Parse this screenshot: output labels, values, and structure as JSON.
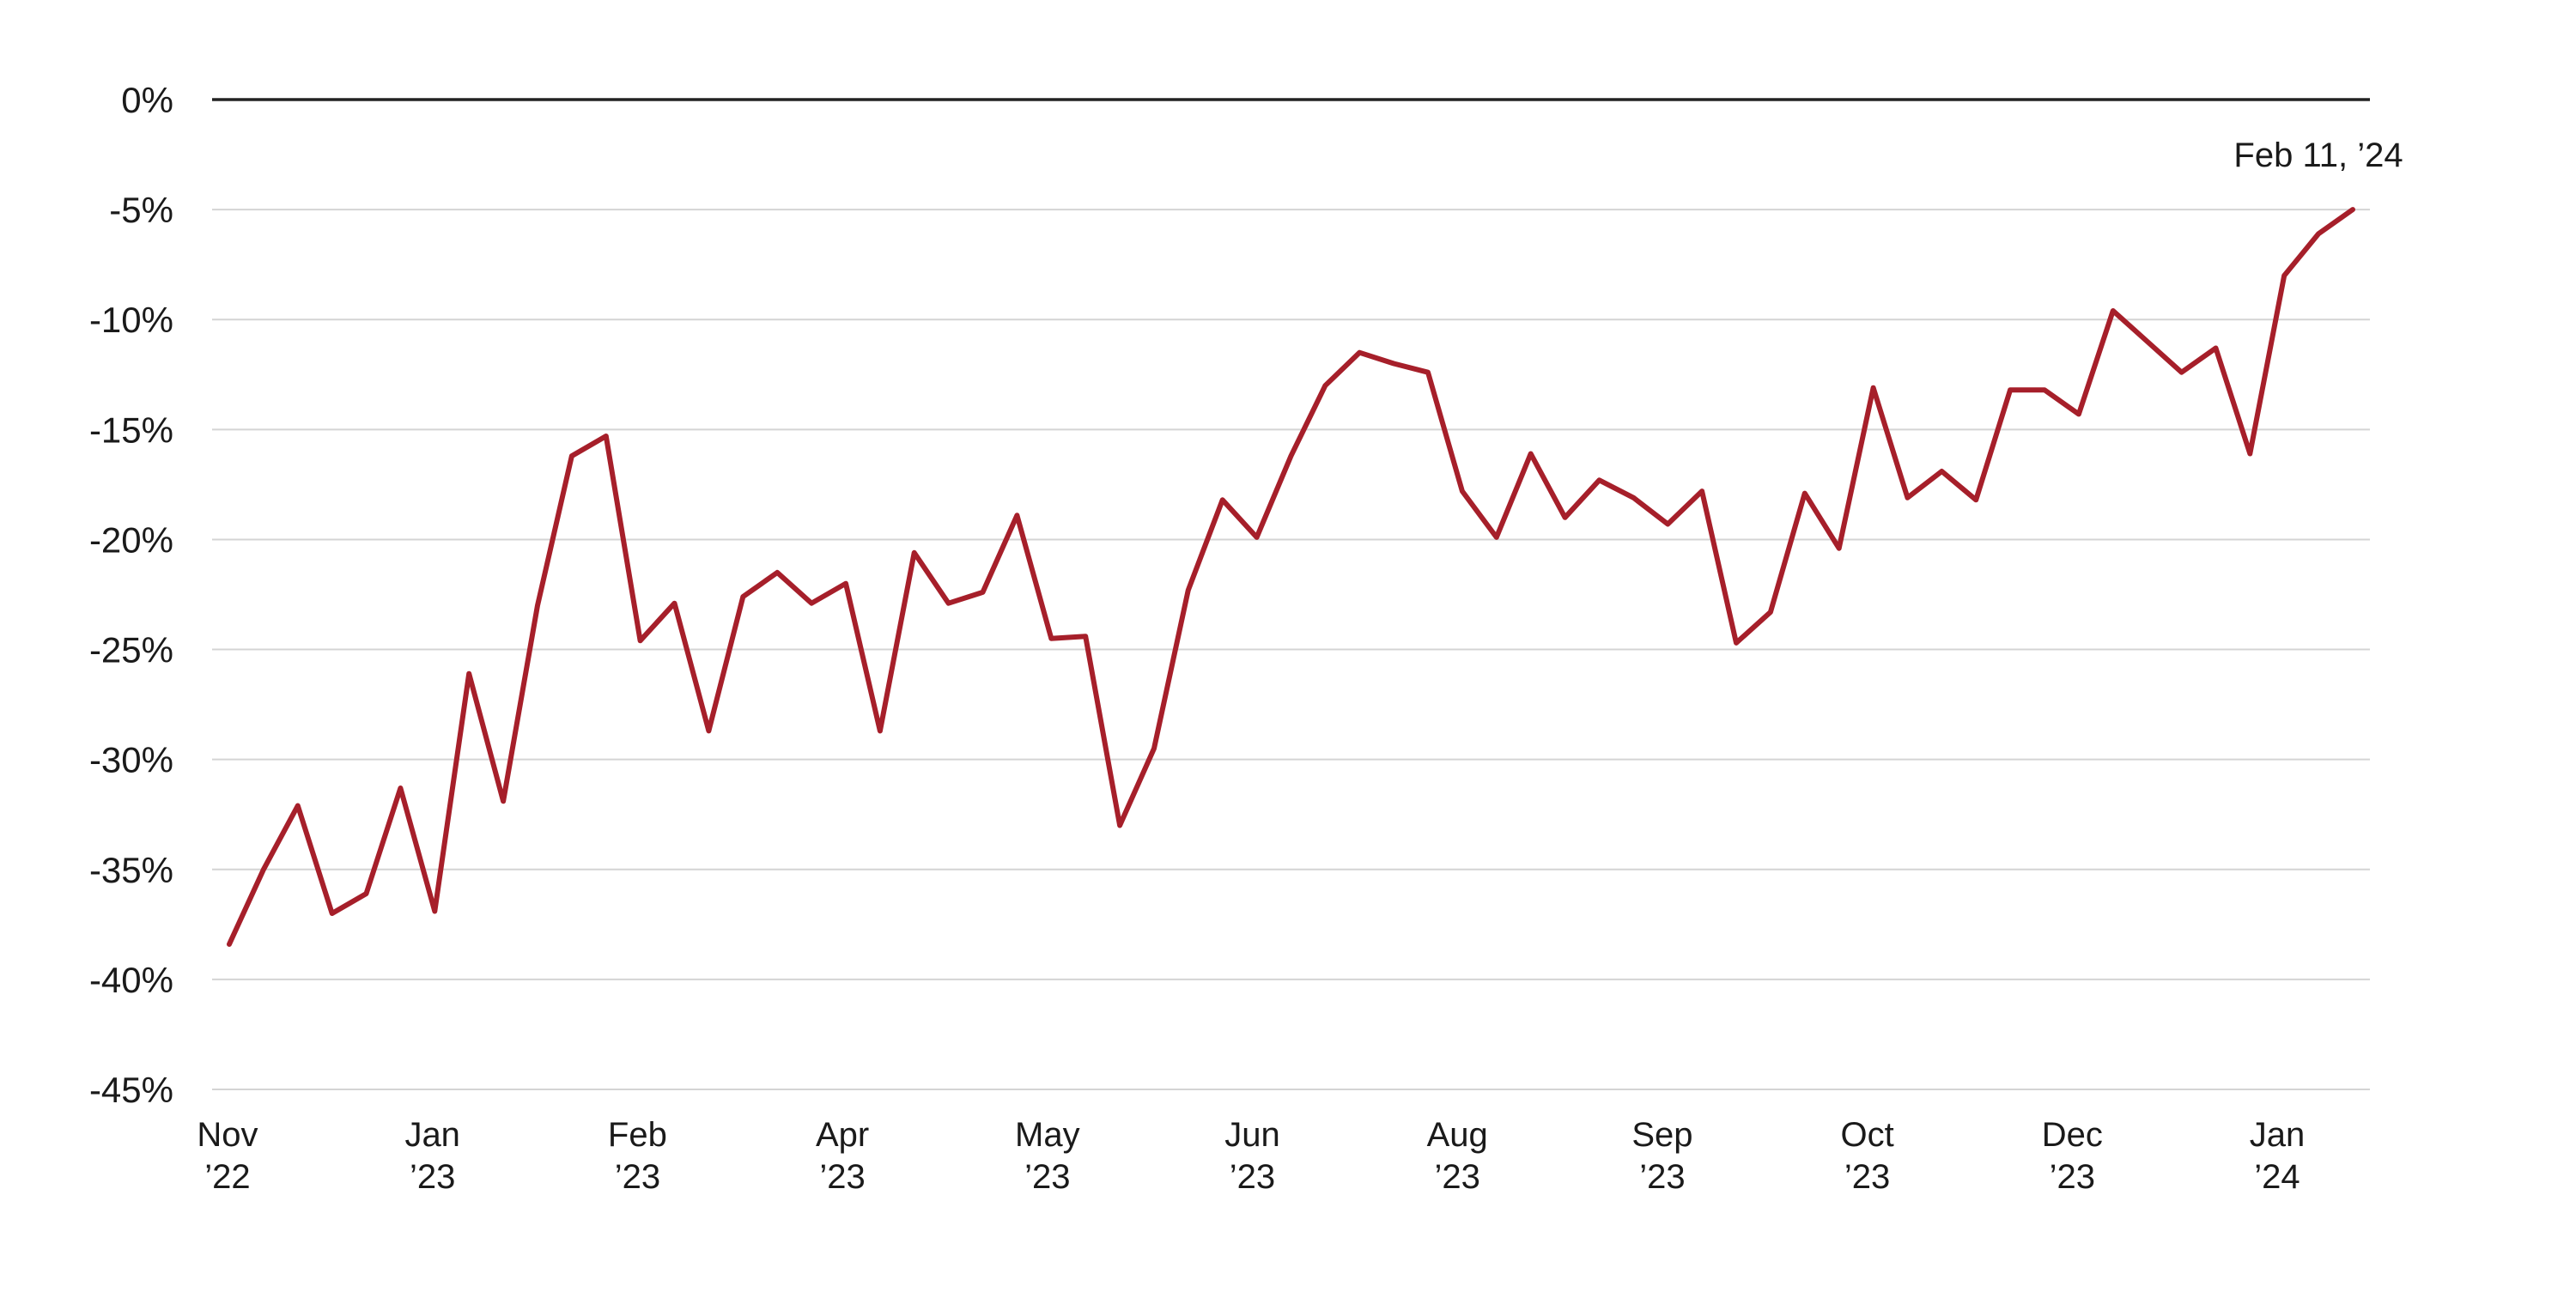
{
  "colors": {
    "line": "#a61f2a",
    "grid": "#d4d4d4",
    "zero_line": "#222222",
    "text": "#1a1a1a",
    "background": "#ffffff"
  },
  "chart_data": {
    "type": "line",
    "title": "",
    "xlabel": "",
    "ylabel": "",
    "ylim": [
      -45,
      0
    ],
    "grid": true,
    "legend": "none",
    "yticks": [
      0,
      -5,
      -10,
      -15,
      -20,
      -25,
      -30,
      -35,
      -40,
      -45
    ],
    "ytick_labels": [
      "0%",
      "-5%",
      "-10%",
      "-15%",
      "-20%",
      "-25%",
      "-30%",
      "-35%",
      "-40%",
      "-45%"
    ],
    "xtick_labels": [
      {
        "month": "Nov",
        "year": "’22"
      },
      {
        "month": "Jan",
        "year": "’23"
      },
      {
        "month": "Feb",
        "year": "’23"
      },
      {
        "month": "Apr",
        "year": "’23"
      },
      {
        "month": "May",
        "year": "’23"
      },
      {
        "month": "Jun",
        "year": "’23"
      },
      {
        "month": "Aug",
        "year": "’23"
      },
      {
        "month": "Sep",
        "year": "’23"
      },
      {
        "month": "Oct",
        "year": "’23"
      },
      {
        "month": "Dec",
        "year": "’23"
      },
      {
        "month": "Jan",
        "year": "’24"
      }
    ],
    "series": [
      {
        "values": [
          -38.4,
          -35.0,
          -32.1,
          -37.0,
          -36.1,
          -31.3,
          -36.9,
          -26.1,
          -31.9,
          -23.0,
          -16.2,
          -15.3,
          -24.6,
          -22.9,
          -28.7,
          -22.6,
          -21.5,
          -22.9,
          -22.0,
          -28.7,
          -20.6,
          -22.9,
          -22.4,
          -18.9,
          -24.5,
          -24.4,
          -33.0,
          -29.5,
          -22.3,
          -18.2,
          -19.9,
          -16.2,
          -13.0,
          -11.5,
          -12.0,
          -12.4,
          -17.8,
          -19.9,
          -16.1,
          -19.0,
          -17.3,
          -18.1,
          -19.3,
          -17.8,
          -24.7,
          -23.3,
          -17.9,
          -20.4,
          -13.1,
          -18.1,
          -16.9,
          -18.2,
          -13.2,
          -13.2,
          -14.3,
          -9.6,
          -11.0,
          -12.4,
          -11.3,
          -16.1,
          -8.0,
          -6.1,
          -5.0
        ]
      }
    ],
    "annotation": {
      "text": "Feb 11, ’24",
      "value": -5.0
    }
  }
}
